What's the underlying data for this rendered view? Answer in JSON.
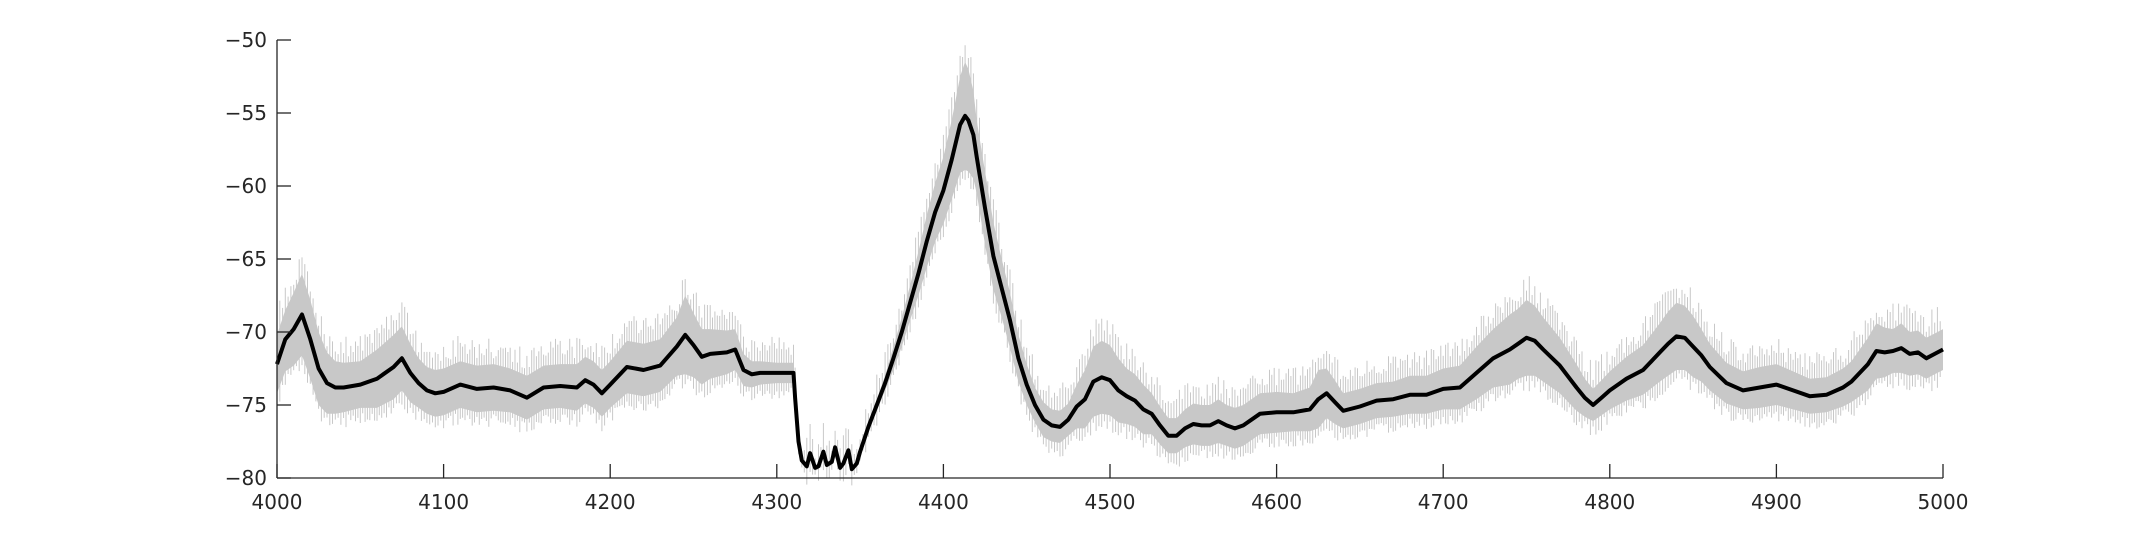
{
  "chart_data": {
    "type": "line",
    "title": "",
    "xlabel": "",
    "ylabel": "",
    "xlim": [
      4000,
      5000
    ],
    "ylim": [
      -80,
      -50
    ],
    "x_ticks": [
      4000,
      4100,
      4200,
      4300,
      4400,
      4500,
      4600,
      4700,
      4800,
      4900,
      5000
    ],
    "y_ticks": [
      -50,
      -55,
      -60,
      -65,
      -70,
      -75,
      -80
    ],
    "grid": false,
    "legend": "none",
    "colors": {
      "mean_line": "#000000",
      "band": "#c8c8c8",
      "axis": "#262626"
    },
    "series": [
      {
        "style": "mean",
        "x": [
          4000,
          4005,
          4010,
          4015,
          4020,
          4025,
          4030,
          4035,
          4040,
          4050,
          4060,
          4070,
          4075,
          4080,
          4085,
          4090,
          4095,
          4100,
          4110,
          4120,
          4130,
          4140,
          4150,
          4160,
          4170,
          4180,
          4185,
          4190,
          4195,
          4200,
          4210,
          4220,
          4230,
          4240,
          4245,
          4250,
          4255,
          4260,
          4270,
          4275,
          4280,
          4285,
          4290,
          4300,
          4310,
          4311,
          4313,
          4315,
          4318,
          4320,
          4323,
          4325,
          4328,
          4330,
          4333,
          4335,
          4338,
          4340,
          4343,
          4345,
          4348,
          4350,
          4355,
          4360,
          4365,
          4370,
          4375,
          4380,
          4385,
          4390,
          4395,
          4400,
          4405,
          4410,
          4413,
          4415,
          4418,
          4420,
          4425,
          4430,
          4435,
          4440,
          4445,
          4450,
          4455,
          4460,
          4465,
          4470,
          4475,
          4480,
          4485,
          4490,
          4495,
          4500,
          4505,
          4510,
          4515,
          4520,
          4525,
          4530,
          4535,
          4540,
          4545,
          4550,
          4555,
          4560,
          4565,
          4570,
          4575,
          4580,
          4590,
          4600,
          4610,
          4620,
          4625,
          4630,
          4635,
          4640,
          4650,
          4660,
          4670,
          4680,
          4690,
          4700,
          4710,
          4720,
          4730,
          4740,
          4745,
          4750,
          4755,
          4760,
          4770,
          4780,
          4785,
          4790,
          4795,
          4800,
          4810,
          4820,
          4830,
          4835,
          4840,
          4845,
          4850,
          4855,
          4860,
          4870,
          4880,
          4890,
          4900,
          4910,
          4920,
          4930,
          4940,
          4945,
          4950,
          4955,
          4960,
          4965,
          4970,
          4975,
          4980,
          4985,
          4990,
          4995,
          5000
        ],
        "y": [
          -72.2,
          -70.5,
          -69.8,
          -68.8,
          -70.5,
          -72.5,
          -73.5,
          -73.8,
          -73.8,
          -73.6,
          -73.2,
          -72.4,
          -71.8,
          -72.8,
          -73.5,
          -74,
          -74.2,
          -74.1,
          -73.6,
          -73.9,
          -73.8,
          -74,
          -74.5,
          -73.8,
          -73.7,
          -73.8,
          -73.3,
          -73.6,
          -74.2,
          -73.6,
          -72.4,
          -72.6,
          -72.3,
          -71,
          -70.2,
          -70.9,
          -71.7,
          -71.5,
          -71.4,
          -71.2,
          -72.6,
          -72.9,
          -72.8,
          -72.8,
          -72.8,
          -74.5,
          -77.5,
          -78.8,
          -79.2,
          -78.3,
          -79.3,
          -79.2,
          -78.2,
          -79.1,
          -78.9,
          -77.9,
          -79.3,
          -79,
          -78.1,
          -79.4,
          -79,
          -78.2,
          -76.5,
          -75,
          -73.5,
          -71.8,
          -70,
          -68,
          -66,
          -63.8,
          -61.8,
          -60.3,
          -58.2,
          -55.8,
          -55.2,
          -55.5,
          -56.5,
          -58,
          -61.5,
          -64.8,
          -67,
          -69.2,
          -71.8,
          -73.6,
          -75,
          -76,
          -76.4,
          -76.5,
          -76,
          -75.1,
          -74.6,
          -73.4,
          -73.1,
          -73.3,
          -74,
          -74.4,
          -74.7,
          -75.3,
          -75.6,
          -76.4,
          -77.1,
          -77.1,
          -76.6,
          -76.3,
          -76.4,
          -76.4,
          -76.1,
          -76.4,
          -76.6,
          -76.4,
          -75.6,
          -75.5,
          -75.5,
          -75.3,
          -74.6,
          -74.2,
          -74.8,
          -75.4,
          -75.1,
          -74.7,
          -74.6,
          -74.3,
          -74.3,
          -73.9,
          -73.8,
          -72.8,
          -71.8,
          -71.2,
          -70.8,
          -70.4,
          -70.6,
          -71.2,
          -72.3,
          -73.8,
          -74.5,
          -75,
          -74.5,
          -74,
          -73.2,
          -72.6,
          -71.4,
          -70.8,
          -70.3,
          -70.4,
          -71,
          -71.6,
          -72.4,
          -73.5,
          -74,
          -73.8,
          -73.6,
          -74,
          -74.4,
          -74.3,
          -73.8,
          -73.4,
          -72.8,
          -72.2,
          -71.3,
          -71.4,
          -71.3,
          -71.1,
          -71.5,
          -71.4,
          -71.8,
          -71.5,
          -71.2
        ]
      },
      {
        "style": "band",
        "x": [
          4000,
          4005,
          4010,
          4015,
          4020,
          4025,
          4030,
          4035,
          4040,
          4050,
          4060,
          4070,
          4075,
          4080,
          4085,
          4090,
          4095,
          4100,
          4110,
          4120,
          4130,
          4140,
          4150,
          4160,
          4170,
          4180,
          4185,
          4190,
          4195,
          4200,
          4210,
          4220,
          4230,
          4240,
          4245,
          4250,
          4255,
          4260,
          4270,
          4275,
          4280,
          4285,
          4290,
          4300,
          4310,
          4311,
          4313,
          4315,
          4318,
          4320,
          4323,
          4325,
          4328,
          4330,
          4333,
          4335,
          4338,
          4340,
          4343,
          4345,
          4348,
          4350,
          4355,
          4360,
          4365,
          4370,
          4375,
          4380,
          4385,
          4390,
          4395,
          4400,
          4405,
          4410,
          4413,
          4415,
          4418,
          4420,
          4425,
          4430,
          4435,
          4440,
          4445,
          4450,
          4455,
          4460,
          4465,
          4470,
          4475,
          4480,
          4485,
          4490,
          4495,
          4500,
          4505,
          4510,
          4515,
          4520,
          4525,
          4530,
          4535,
          4540,
          4545,
          4550,
          4555,
          4560,
          4565,
          4570,
          4575,
          4580,
          4590,
          4600,
          4610,
          4620,
          4625,
          4630,
          4635,
          4640,
          4650,
          4660,
          4670,
          4680,
          4690,
          4700,
          4710,
          4720,
          4730,
          4740,
          4745,
          4750,
          4755,
          4760,
          4770,
          4780,
          4785,
          4790,
          4795,
          4800,
          4810,
          4820,
          4830,
          4835,
          4840,
          4845,
          4850,
          4855,
          4860,
          4870,
          4880,
          4890,
          4900,
          4910,
          4920,
          4930,
          4940,
          4945,
          4950,
          4955,
          4960,
          4965,
          4970,
          4975,
          4980,
          4985,
          4990,
          4995,
          5000
        ],
        "upper": [
          -70.2,
          -68.5,
          -67.3,
          -66,
          -67.8,
          -70,
          -71.4,
          -72,
          -72.1,
          -72,
          -71.2,
          -70.2,
          -69.6,
          -70.8,
          -71.8,
          -72.4,
          -72.6,
          -72.5,
          -72,
          -72.3,
          -72.2,
          -72.5,
          -73,
          -72.3,
          -72.2,
          -72.2,
          -71.7,
          -72,
          -72.6,
          -72,
          -70.6,
          -70.8,
          -70.5,
          -69,
          -67.5,
          -68.7,
          -69.8,
          -69.8,
          -69.9,
          -69.8,
          -71.5,
          -72,
          -72,
          -72.1,
          -72.1,
          -74.2,
          -77.3,
          -78.6,
          -79,
          -78.1,
          -79.1,
          -79,
          -78,
          -78.9,
          -78.7,
          -77.7,
          -79.1,
          -78.8,
          -77.9,
          -79.2,
          -78.8,
          -78,
          -76.2,
          -74.6,
          -73,
          -71,
          -69,
          -66.8,
          -64.5,
          -62,
          -59.8,
          -58,
          -55.5,
          -52.5,
          -51.5,
          -52,
          -53.5,
          -55.5,
          -59,
          -62.5,
          -65,
          -67.3,
          -70.2,
          -72.2,
          -73.8,
          -74.8,
          -75.3,
          -75.4,
          -74.9,
          -73.6,
          -72.6,
          -71,
          -70.6,
          -70.9,
          -71.8,
          -72.5,
          -72.9,
          -73.6,
          -74.2,
          -75.1,
          -75.9,
          -75.9,
          -75.3,
          -74.9,
          -75,
          -75,
          -74.6,
          -75,
          -75.2,
          -75,
          -74.2,
          -74.1,
          -74.2,
          -73.8,
          -72.6,
          -72.5,
          -73.3,
          -74.2,
          -73.9,
          -73.5,
          -73.4,
          -73,
          -73,
          -72.5,
          -72.3,
          -71,
          -69.8,
          -68.8,
          -68.4,
          -67.8,
          -68.2,
          -69,
          -70.4,
          -72.2,
          -73.2,
          -73.9,
          -73.3,
          -72.7,
          -71.7,
          -70.9,
          -69.4,
          -68.6,
          -68,
          -68.2,
          -68.9,
          -69.8,
          -70.8,
          -72.1,
          -72.7,
          -72.4,
          -72.2,
          -72.7,
          -73.2,
          -73.1,
          -72.5,
          -72,
          -71.2,
          -70.4,
          -69.4,
          -69.7,
          -69.8,
          -69.4,
          -70,
          -69.9,
          -70.4,
          -70.1,
          -69.8
        ],
        "lower": [
          -74.2,
          -72.7,
          -72.3,
          -71.6,
          -73.2,
          -75,
          -75.6,
          -75.6,
          -75.5,
          -75.2,
          -75.2,
          -74.6,
          -74,
          -74.8,
          -75.2,
          -75.6,
          -75.8,
          -75.7,
          -75.2,
          -75.5,
          -75.4,
          -75.5,
          -76,
          -75.3,
          -75.2,
          -75.4,
          -74.9,
          -75.2,
          -75.8,
          -75.2,
          -74.2,
          -74.4,
          -74.1,
          -73,
          -72.9,
          -73.1,
          -73.6,
          -73.2,
          -72.9,
          -72.6,
          -73.7,
          -73.8,
          -73.6,
          -73.5,
          -73.5,
          -74.8,
          -77.7,
          -79,
          -79.4,
          -78.5,
          -79.5,
          -79.4,
          -78.4,
          -79.3,
          -79.1,
          -78.1,
          -79.5,
          -79.2,
          -78.3,
          -79.6,
          -79.2,
          -78.4,
          -76.8,
          -75.4,
          -74,
          -72.6,
          -71,
          -69.2,
          -67.5,
          -65.6,
          -63.8,
          -62.6,
          -60.9,
          -59.1,
          -58.9,
          -59,
          -59.5,
          -60.5,
          -64,
          -67.1,
          -69,
          -71.1,
          -73.4,
          -75,
          -76.2,
          -77.2,
          -77.5,
          -77.6,
          -77.1,
          -76.6,
          -76.6,
          -75.8,
          -75.6,
          -75.7,
          -76.2,
          -76.3,
          -76.5,
          -77,
          -77,
          -77.7,
          -78.3,
          -78.3,
          -77.9,
          -77.7,
          -77.8,
          -77.8,
          -77.6,
          -77.8,
          -78,
          -77.8,
          -77,
          -76.9,
          -76.8,
          -76.8,
          -76.6,
          -75.9,
          -76.3,
          -76.6,
          -76.3,
          -75.9,
          -75.8,
          -75.6,
          -75.6,
          -75.3,
          -75.3,
          -74.6,
          -73.8,
          -73.6,
          -73.2,
          -73,
          -73,
          -73.4,
          -74.2,
          -75.4,
          -75.8,
          -76.1,
          -75.7,
          -75.3,
          -74.7,
          -74.3,
          -73.4,
          -73,
          -72.6,
          -72.6,
          -73.1,
          -73.4,
          -74,
          -74.9,
          -75.3,
          -75.2,
          -75,
          -75.3,
          -75.6,
          -75.5,
          -75.1,
          -74.8,
          -74.4,
          -74,
          -73.2,
          -73.1,
          -72.8,
          -72.8,
          -73,
          -72.9,
          -73.2,
          -72.9,
          -72.6
        ]
      }
    ]
  }
}
